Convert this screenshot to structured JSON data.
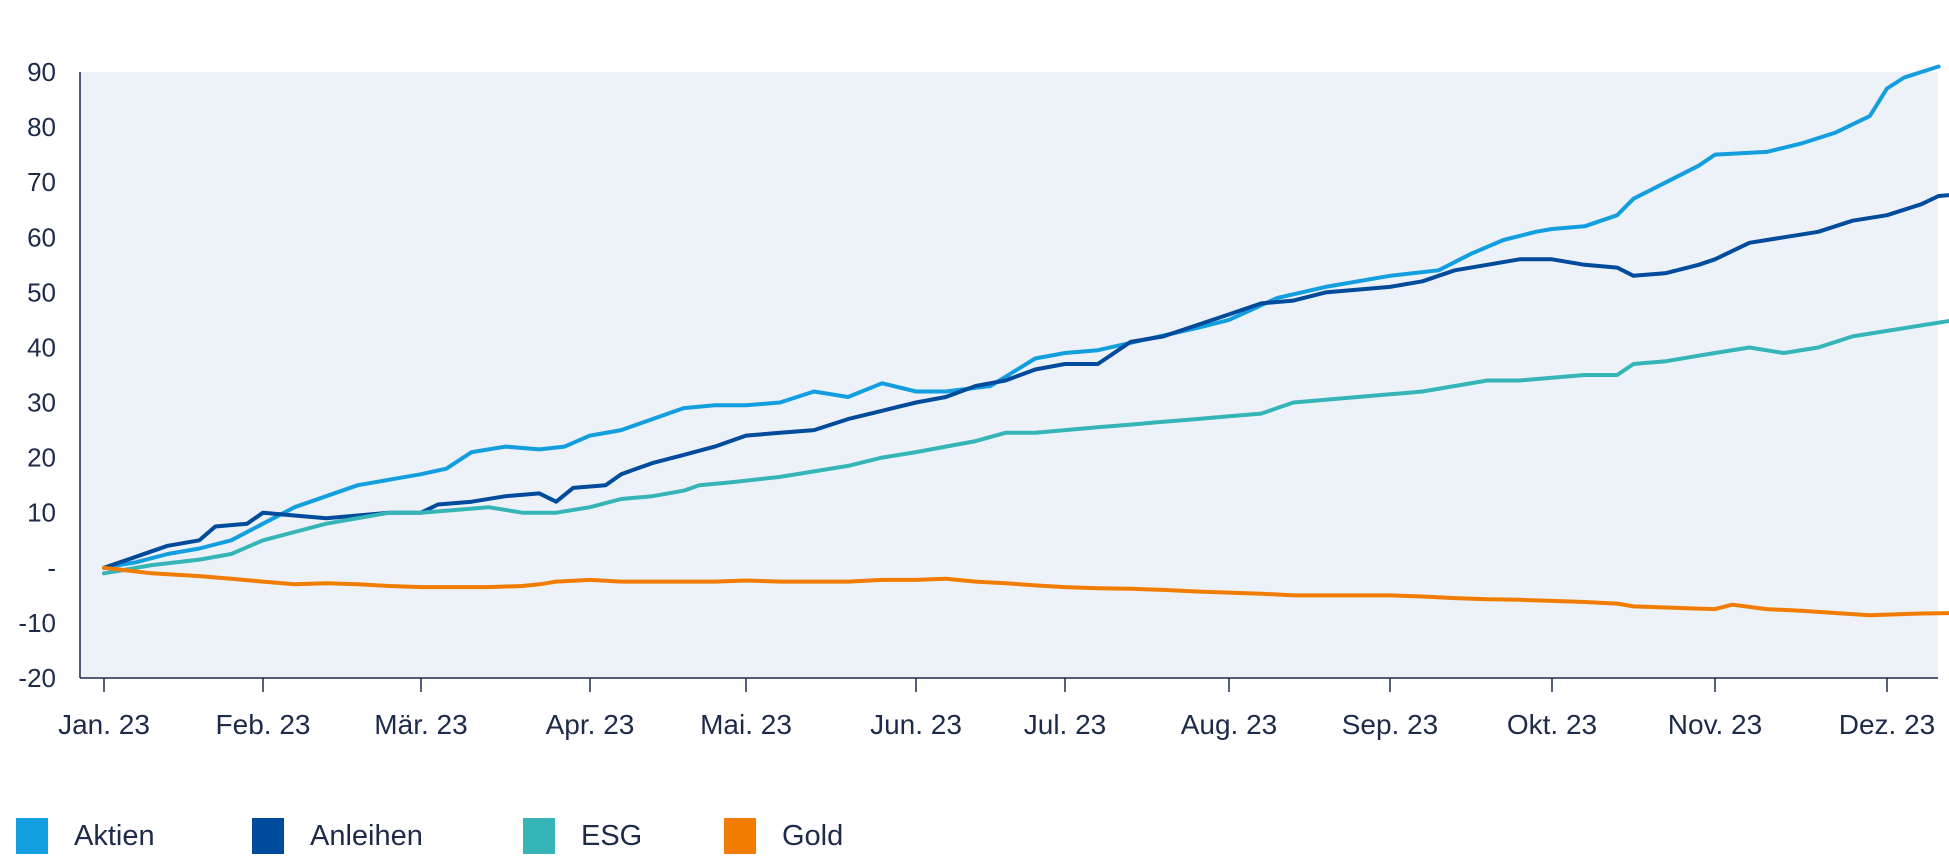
{
  "chart_data": {
    "type": "line",
    "title": "",
    "xlabel": "",
    "ylabel": "",
    "ylim": [
      -20,
      90
    ],
    "yticks": [
      90,
      80,
      70,
      60,
      50,
      40,
      30,
      20,
      10,
      0,
      -10,
      -20
    ],
    "ytick_labels": [
      "90",
      "80",
      "70",
      "60",
      "50",
      "40",
      "30",
      "20",
      "10",
      "-",
      "-10",
      "-20"
    ],
    "x_categories": [
      "Jan. 23",
      "Feb. 23",
      "Mär. 23",
      "Apr. 23",
      "Mai. 23",
      "Jun. 23",
      "Jul. 23",
      "Aug. 23",
      "Sep. 23",
      "Okt. 23",
      "Nov. 23",
      "Dez. 23"
    ],
    "grid": false,
    "legend_position": "bottom-left",
    "background": "#edf2f9",
    "series": [
      {
        "name": "Aktien",
        "color": "#139ee0",
        "points": [
          [
            0,
            0
          ],
          [
            0.2,
            1
          ],
          [
            0.4,
            2.5
          ],
          [
            0.6,
            3.5
          ],
          [
            0.8,
            5
          ],
          [
            1,
            8
          ],
          [
            1.2,
            11
          ],
          [
            1.4,
            13
          ],
          [
            1.6,
            15
          ],
          [
            1.8,
            16
          ],
          [
            2,
            17
          ],
          [
            2.15,
            18
          ],
          [
            2.3,
            21
          ],
          [
            2.5,
            22
          ],
          [
            2.7,
            21.5
          ],
          [
            2.85,
            22
          ],
          [
            3,
            24
          ],
          [
            3.2,
            25
          ],
          [
            3.4,
            27
          ],
          [
            3.6,
            29
          ],
          [
            3.8,
            29.5
          ],
          [
            4,
            29.5
          ],
          [
            4.2,
            30
          ],
          [
            4.4,
            32
          ],
          [
            4.6,
            31
          ],
          [
            4.8,
            33.5
          ],
          [
            5,
            32
          ],
          [
            5.2,
            32
          ],
          [
            5.5,
            33
          ],
          [
            5.8,
            38
          ],
          [
            6,
            39
          ],
          [
            6.2,
            39.5
          ],
          [
            6.5,
            41.5
          ],
          [
            6.8,
            43.5
          ],
          [
            7,
            45
          ],
          [
            7.3,
            49
          ],
          [
            7.6,
            51
          ],
          [
            8,
            53
          ],
          [
            8.3,
            54
          ],
          [
            8.5,
            57
          ],
          [
            8.7,
            59.5
          ],
          [
            8.9,
            61
          ],
          [
            9,
            61.5
          ],
          [
            9.2,
            62
          ],
          [
            9.4,
            64
          ],
          [
            9.5,
            67
          ],
          [
            9.7,
            70
          ],
          [
            9.9,
            73
          ],
          [
            10,
            75
          ],
          [
            10.3,
            75.5
          ],
          [
            10.5,
            77
          ],
          [
            10.7,
            79
          ],
          [
            10.9,
            82
          ],
          [
            11,
            87
          ],
          [
            11.1,
            89
          ],
          [
            11.2,
            90
          ],
          [
            11.3,
            91
          ]
        ]
      },
      {
        "name": "Anleihen",
        "color": "#004b9b",
        "points": [
          [
            0,
            0
          ],
          [
            0.2,
            2
          ],
          [
            0.4,
            4
          ],
          [
            0.6,
            5
          ],
          [
            0.7,
            7.5
          ],
          [
            0.9,
            8
          ],
          [
            1,
            10
          ],
          [
            1.2,
            9.5
          ],
          [
            1.4,
            9
          ],
          [
            1.6,
            9.5
          ],
          [
            1.8,
            10
          ],
          [
            2,
            10
          ],
          [
            2.1,
            11.5
          ],
          [
            2.3,
            12
          ],
          [
            2.5,
            13
          ],
          [
            2.7,
            13.5
          ],
          [
            2.8,
            12
          ],
          [
            2.9,
            14.5
          ],
          [
            3.1,
            15
          ],
          [
            3.2,
            17
          ],
          [
            3.4,
            19
          ],
          [
            3.6,
            20.5
          ],
          [
            3.8,
            22
          ],
          [
            4,
            24
          ],
          [
            4.2,
            24.5
          ],
          [
            4.4,
            25
          ],
          [
            4.6,
            27
          ],
          [
            4.8,
            28.5
          ],
          [
            5,
            30
          ],
          [
            5.2,
            31
          ],
          [
            5.4,
            33
          ],
          [
            5.6,
            34
          ],
          [
            5.8,
            36
          ],
          [
            6,
            37
          ],
          [
            6.2,
            37
          ],
          [
            6.4,
            41
          ],
          [
            6.6,
            42
          ],
          [
            6.8,
            44
          ],
          [
            7,
            46
          ],
          [
            7.2,
            48
          ],
          [
            7.4,
            48.5
          ],
          [
            7.6,
            50
          ],
          [
            7.8,
            50.5
          ],
          [
            8,
            51
          ],
          [
            8.2,
            52
          ],
          [
            8.4,
            54
          ],
          [
            8.6,
            55
          ],
          [
            8.8,
            56
          ],
          [
            9,
            56
          ],
          [
            9.2,
            55
          ],
          [
            9.4,
            54.5
          ],
          [
            9.5,
            53
          ],
          [
            9.7,
            53.5
          ],
          [
            9.9,
            55
          ],
          [
            10,
            56
          ],
          [
            10.2,
            59
          ],
          [
            10.4,
            60
          ],
          [
            10.6,
            61
          ],
          [
            10.8,
            63
          ],
          [
            11,
            64
          ],
          [
            11.2,
            66
          ],
          [
            11.3,
            67.5
          ],
          [
            11.5,
            68
          ]
        ]
      },
      {
        "name": "ESG",
        "color": "#35b5b7",
        "points": [
          [
            0,
            -1
          ],
          [
            0.3,
            0.5
          ],
          [
            0.6,
            1.5
          ],
          [
            0.8,
            2.5
          ],
          [
            1,
            5
          ],
          [
            1.2,
            6.5
          ],
          [
            1.4,
            8
          ],
          [
            1.6,
            9
          ],
          [
            1.8,
            10
          ],
          [
            2,
            10
          ],
          [
            2.2,
            10.5
          ],
          [
            2.4,
            11
          ],
          [
            2.6,
            10
          ],
          [
            2.8,
            10
          ],
          [
            3,
            11
          ],
          [
            3.2,
            12.5
          ],
          [
            3.4,
            13
          ],
          [
            3.6,
            14
          ],
          [
            3.7,
            15
          ],
          [
            3.9,
            15.5
          ],
          [
            4.2,
            16.5
          ],
          [
            4.4,
            17.5
          ],
          [
            4.6,
            18.5
          ],
          [
            4.8,
            20
          ],
          [
            5,
            21
          ],
          [
            5.2,
            22
          ],
          [
            5.4,
            23
          ],
          [
            5.6,
            24.5
          ],
          [
            5.8,
            24.5
          ],
          [
            6,
            25
          ],
          [
            6.2,
            25.5
          ],
          [
            6.4,
            26
          ],
          [
            6.6,
            26.5
          ],
          [
            6.8,
            27
          ],
          [
            7,
            27.5
          ],
          [
            7.2,
            28
          ],
          [
            7.4,
            30
          ],
          [
            7.6,
            30.5
          ],
          [
            7.8,
            31
          ],
          [
            8,
            31.5
          ],
          [
            8.2,
            32
          ],
          [
            8.4,
            33
          ],
          [
            8.6,
            34
          ],
          [
            8.8,
            34
          ],
          [
            9,
            34.5
          ],
          [
            9.2,
            35
          ],
          [
            9.4,
            35
          ],
          [
            9.5,
            37
          ],
          [
            9.7,
            37.5
          ],
          [
            9.9,
            38.5
          ],
          [
            10,
            39
          ],
          [
            10.2,
            40
          ],
          [
            10.4,
            39
          ],
          [
            10.6,
            40
          ],
          [
            10.8,
            42
          ],
          [
            11,
            43
          ],
          [
            11.2,
            44
          ],
          [
            11.4,
            45
          ],
          [
            11.5,
            45
          ]
        ]
      },
      {
        "name": "Gold",
        "color": "#f07d00",
        "points": [
          [
            0,
            0
          ],
          [
            0.3,
            -1
          ],
          [
            0.6,
            -1.5
          ],
          [
            0.8,
            -2
          ],
          [
            1,
            -2.5
          ],
          [
            1.2,
            -3
          ],
          [
            1.4,
            -2.8
          ],
          [
            1.6,
            -3
          ],
          [
            1.8,
            -3.3
          ],
          [
            2,
            -3.5
          ],
          [
            2.2,
            -3.5
          ],
          [
            2.4,
            -3.5
          ],
          [
            2.6,
            -3.3
          ],
          [
            2.7,
            -3
          ],
          [
            2.8,
            -2.5
          ],
          [
            3,
            -2.2
          ],
          [
            3.2,
            -2.5
          ],
          [
            3.4,
            -2.5
          ],
          [
            3.6,
            -2.5
          ],
          [
            3.8,
            -2.5
          ],
          [
            4,
            -2.3
          ],
          [
            4.2,
            -2.5
          ],
          [
            4.4,
            -2.5
          ],
          [
            4.6,
            -2.5
          ],
          [
            4.8,
            -2.2
          ],
          [
            5,
            -2.2
          ],
          [
            5.2,
            -2
          ],
          [
            5.4,
            -2.5
          ],
          [
            5.6,
            -2.8
          ],
          [
            5.8,
            -3.2
          ],
          [
            6,
            -3.5
          ],
          [
            6.2,
            -3.7
          ],
          [
            6.4,
            -3.8
          ],
          [
            6.6,
            -4
          ],
          [
            6.8,
            -4.3
          ],
          [
            7,
            -4.5
          ],
          [
            7.2,
            -4.7
          ],
          [
            7.4,
            -5
          ],
          [
            7.6,
            -5
          ],
          [
            7.8,
            -5
          ],
          [
            8,
            -5
          ],
          [
            8.2,
            -5.2
          ],
          [
            8.4,
            -5.5
          ],
          [
            8.6,
            -5.7
          ],
          [
            8.8,
            -5.8
          ],
          [
            9,
            -6
          ],
          [
            9.2,
            -6.2
          ],
          [
            9.4,
            -6.5
          ],
          [
            9.5,
            -7
          ],
          [
            9.7,
            -7.2
          ],
          [
            9.9,
            -7.4
          ],
          [
            10,
            -7.5
          ],
          [
            10.1,
            -6.7
          ],
          [
            10.3,
            -7.5
          ],
          [
            10.5,
            -7.8
          ],
          [
            10.7,
            -8.2
          ],
          [
            10.9,
            -8.6
          ],
          [
            11,
            -8.5
          ],
          [
            11.2,
            -8.3
          ],
          [
            11.4,
            -8.2
          ]
        ]
      }
    ]
  }
}
